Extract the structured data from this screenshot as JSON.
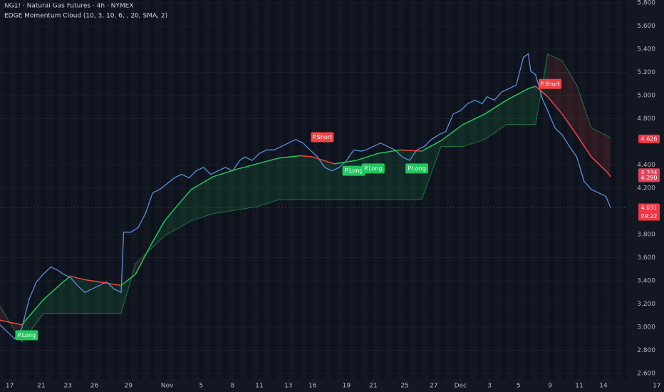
{
  "chart_data": {
    "type": "line",
    "title": "NG1! · Natural Gas Futures · 4h · NYMEX",
    "subtitle": "EDGE Momentum Cloud (10, 3, 10, 6, , 20, SMA, 2)",
    "xlim": [
      0,
      274
    ],
    "ylim": [
      2.551,
      5.825
    ],
    "xticks": [
      {
        "value": 4,
        "label": "17"
      },
      {
        "value": 17,
        "label": "21"
      },
      {
        "value": 28,
        "label": "23"
      },
      {
        "value": 39,
        "label": "26"
      },
      {
        "value": 53,
        "label": "29"
      },
      {
        "value": 69,
        "label": "Nov"
      },
      {
        "value": 83,
        "label": "5"
      },
      {
        "value": 96,
        "label": "8"
      },
      {
        "value": 107,
        "label": "11"
      },
      {
        "value": 119,
        "label": "13"
      },
      {
        "value": 129,
        "label": "16"
      },
      {
        "value": 143,
        "label": "19"
      },
      {
        "value": 154,
        "label": "21"
      },
      {
        "value": 167,
        "label": "25"
      },
      {
        "value": 179,
        "label": "27"
      },
      {
        "value": 190,
        "label": "Dec"
      },
      {
        "value": 202,
        "label": "3"
      },
      {
        "value": 214,
        "label": "5"
      },
      {
        "value": 227,
        "label": "9"
      },
      {
        "value": 239,
        "label": "11"
      },
      {
        "value": 249,
        "label": "14"
      },
      {
        "value": 271,
        "label": "17"
      }
    ],
    "yticks": [
      {
        "value": 5.8,
        "label": "5.800"
      },
      {
        "value": 5.6,
        "label": "5.600"
      },
      {
        "value": 5.4,
        "label": "5.400"
      },
      {
        "value": 5.2,
        "label": "5.200"
      },
      {
        "value": 5.0,
        "label": "5.000"
      },
      {
        "value": 4.8,
        "label": "4.800"
      },
      {
        "value": 4.4,
        "label": "4.400"
      },
      {
        "value": 4.2,
        "label": "4.200"
      },
      {
        "value": 3.8,
        "label": "3.800"
      },
      {
        "value": 3.6,
        "label": "3.600"
      },
      {
        "value": 3.4,
        "label": "3.400"
      },
      {
        "value": 3.2,
        "label": "3.200"
      },
      {
        "value": 3.0,
        "label": "3.000"
      },
      {
        "value": 2.8,
        "label": "2.800"
      },
      {
        "value": 2.6,
        "label": "2.600"
      }
    ],
    "price": {
      "color": "#5b8fd9",
      "x": [
        0,
        3,
        6,
        9,
        12,
        15,
        18,
        21,
        24,
        26,
        29,
        32,
        35,
        38,
        41,
        44,
        47,
        50,
        51,
        54,
        57,
        60,
        63,
        66,
        69,
        72,
        75,
        78,
        81,
        84,
        87,
        90,
        93,
        96,
        99,
        101,
        104,
        107,
        110,
        113,
        116,
        119,
        122,
        125,
        128,
        131,
        134,
        137,
        140,
        143,
        146,
        149,
        151,
        154,
        157,
        160,
        163,
        166,
        169,
        172,
        175,
        178,
        181,
        184,
        187,
        190,
        193,
        196,
        199,
        201,
        204,
        207,
        210,
        213,
        216,
        218,
        219,
        221,
        224,
        226,
        229,
        232,
        235,
        238,
        241,
        244,
        247,
        250,
        252
      ],
      "values": [
        3.02,
        2.96,
        2.9,
        2.99,
        3.24,
        3.39,
        3.46,
        3.52,
        3.49,
        3.46,
        3.43,
        3.36,
        3.3,
        3.33,
        3.36,
        3.39,
        3.33,
        3.3,
        3.82,
        3.82,
        3.86,
        3.98,
        4.16,
        4.19,
        4.24,
        4.29,
        4.32,
        4.29,
        4.35,
        4.38,
        4.32,
        4.35,
        4.38,
        4.35,
        4.44,
        4.47,
        4.44,
        4.5,
        4.53,
        4.53,
        4.56,
        4.59,
        4.62,
        4.59,
        4.53,
        4.47,
        4.38,
        4.35,
        4.38,
        4.44,
        4.53,
        4.52,
        4.53,
        4.56,
        4.59,
        4.56,
        4.53,
        4.47,
        4.44,
        4.53,
        4.56,
        4.62,
        4.66,
        4.69,
        4.84,
        4.87,
        4.93,
        4.96,
        4.93,
        4.99,
        4.96,
        5.03,
        5.06,
        5.09,
        5.33,
        5.36,
        5.21,
        5.18,
        4.96,
        4.87,
        4.72,
        4.66,
        4.56,
        4.47,
        4.26,
        4.19,
        4.16,
        4.13,
        4.03
      ]
    },
    "cloud": {
      "up_color": "#22c55e",
      "down_color": "#ef4444",
      "x": [
        0,
        9,
        18,
        26,
        29,
        35,
        44,
        50,
        56,
        62,
        68,
        74,
        79,
        88,
        97,
        106,
        115,
        124,
        129,
        138,
        147,
        156,
        165,
        174,
        182,
        191,
        200,
        209,
        218,
        221,
        226,
        232,
        238,
        244,
        250,
        252
      ],
      "average": [
        3.06,
        3.02,
        3.24,
        3.39,
        3.44,
        3.41,
        3.38,
        3.36,
        3.46,
        3.7,
        3.92,
        4.07,
        4.19,
        4.3,
        4.36,
        4.41,
        4.46,
        4.48,
        4.47,
        4.41,
        4.44,
        4.5,
        4.53,
        4.52,
        4.61,
        4.75,
        4.84,
        4.96,
        5.06,
        5.08,
        4.99,
        4.84,
        4.66,
        4.47,
        4.35,
        4.3
      ],
      "band": [
        3.18,
        2.87,
        3.12,
        3.12,
        3.12,
        3.12,
        3.12,
        3.12,
        3.55,
        3.67,
        3.79,
        3.86,
        3.92,
        3.98,
        4.01,
        4.04,
        4.1,
        4.1,
        4.1,
        4.1,
        4.1,
        4.1,
        4.1,
        4.1,
        4.56,
        4.56,
        4.62,
        4.75,
        4.75,
        4.75,
        5.36,
        5.3,
        5.09,
        4.72,
        4.66,
        4.63
      ]
    },
    "signals": [
      {
        "label": "P.Long",
        "x": 11,
        "price": 2.93
      },
      {
        "label": "P.Short",
        "x": 133,
        "price": 4.64
      },
      {
        "label": "P.Long",
        "x": 146,
        "price": 4.35
      },
      {
        "label": "P.Long",
        "x": 154,
        "price": 4.37
      },
      {
        "label": "P.Long",
        "x": 172,
        "price": 4.37
      },
      {
        "label": "P.Short",
        "x": 227,
        "price": 5.1
      }
    ],
    "price_labels": [
      {
        "value": 4.626,
        "label": "4.626"
      },
      {
        "value": 4.334,
        "label": "4.334"
      },
      {
        "value": 4.29,
        "label": "4.290"
      },
      {
        "value": 4.031,
        "label": "4.031"
      }
    ],
    "countdown": "09:22"
  }
}
